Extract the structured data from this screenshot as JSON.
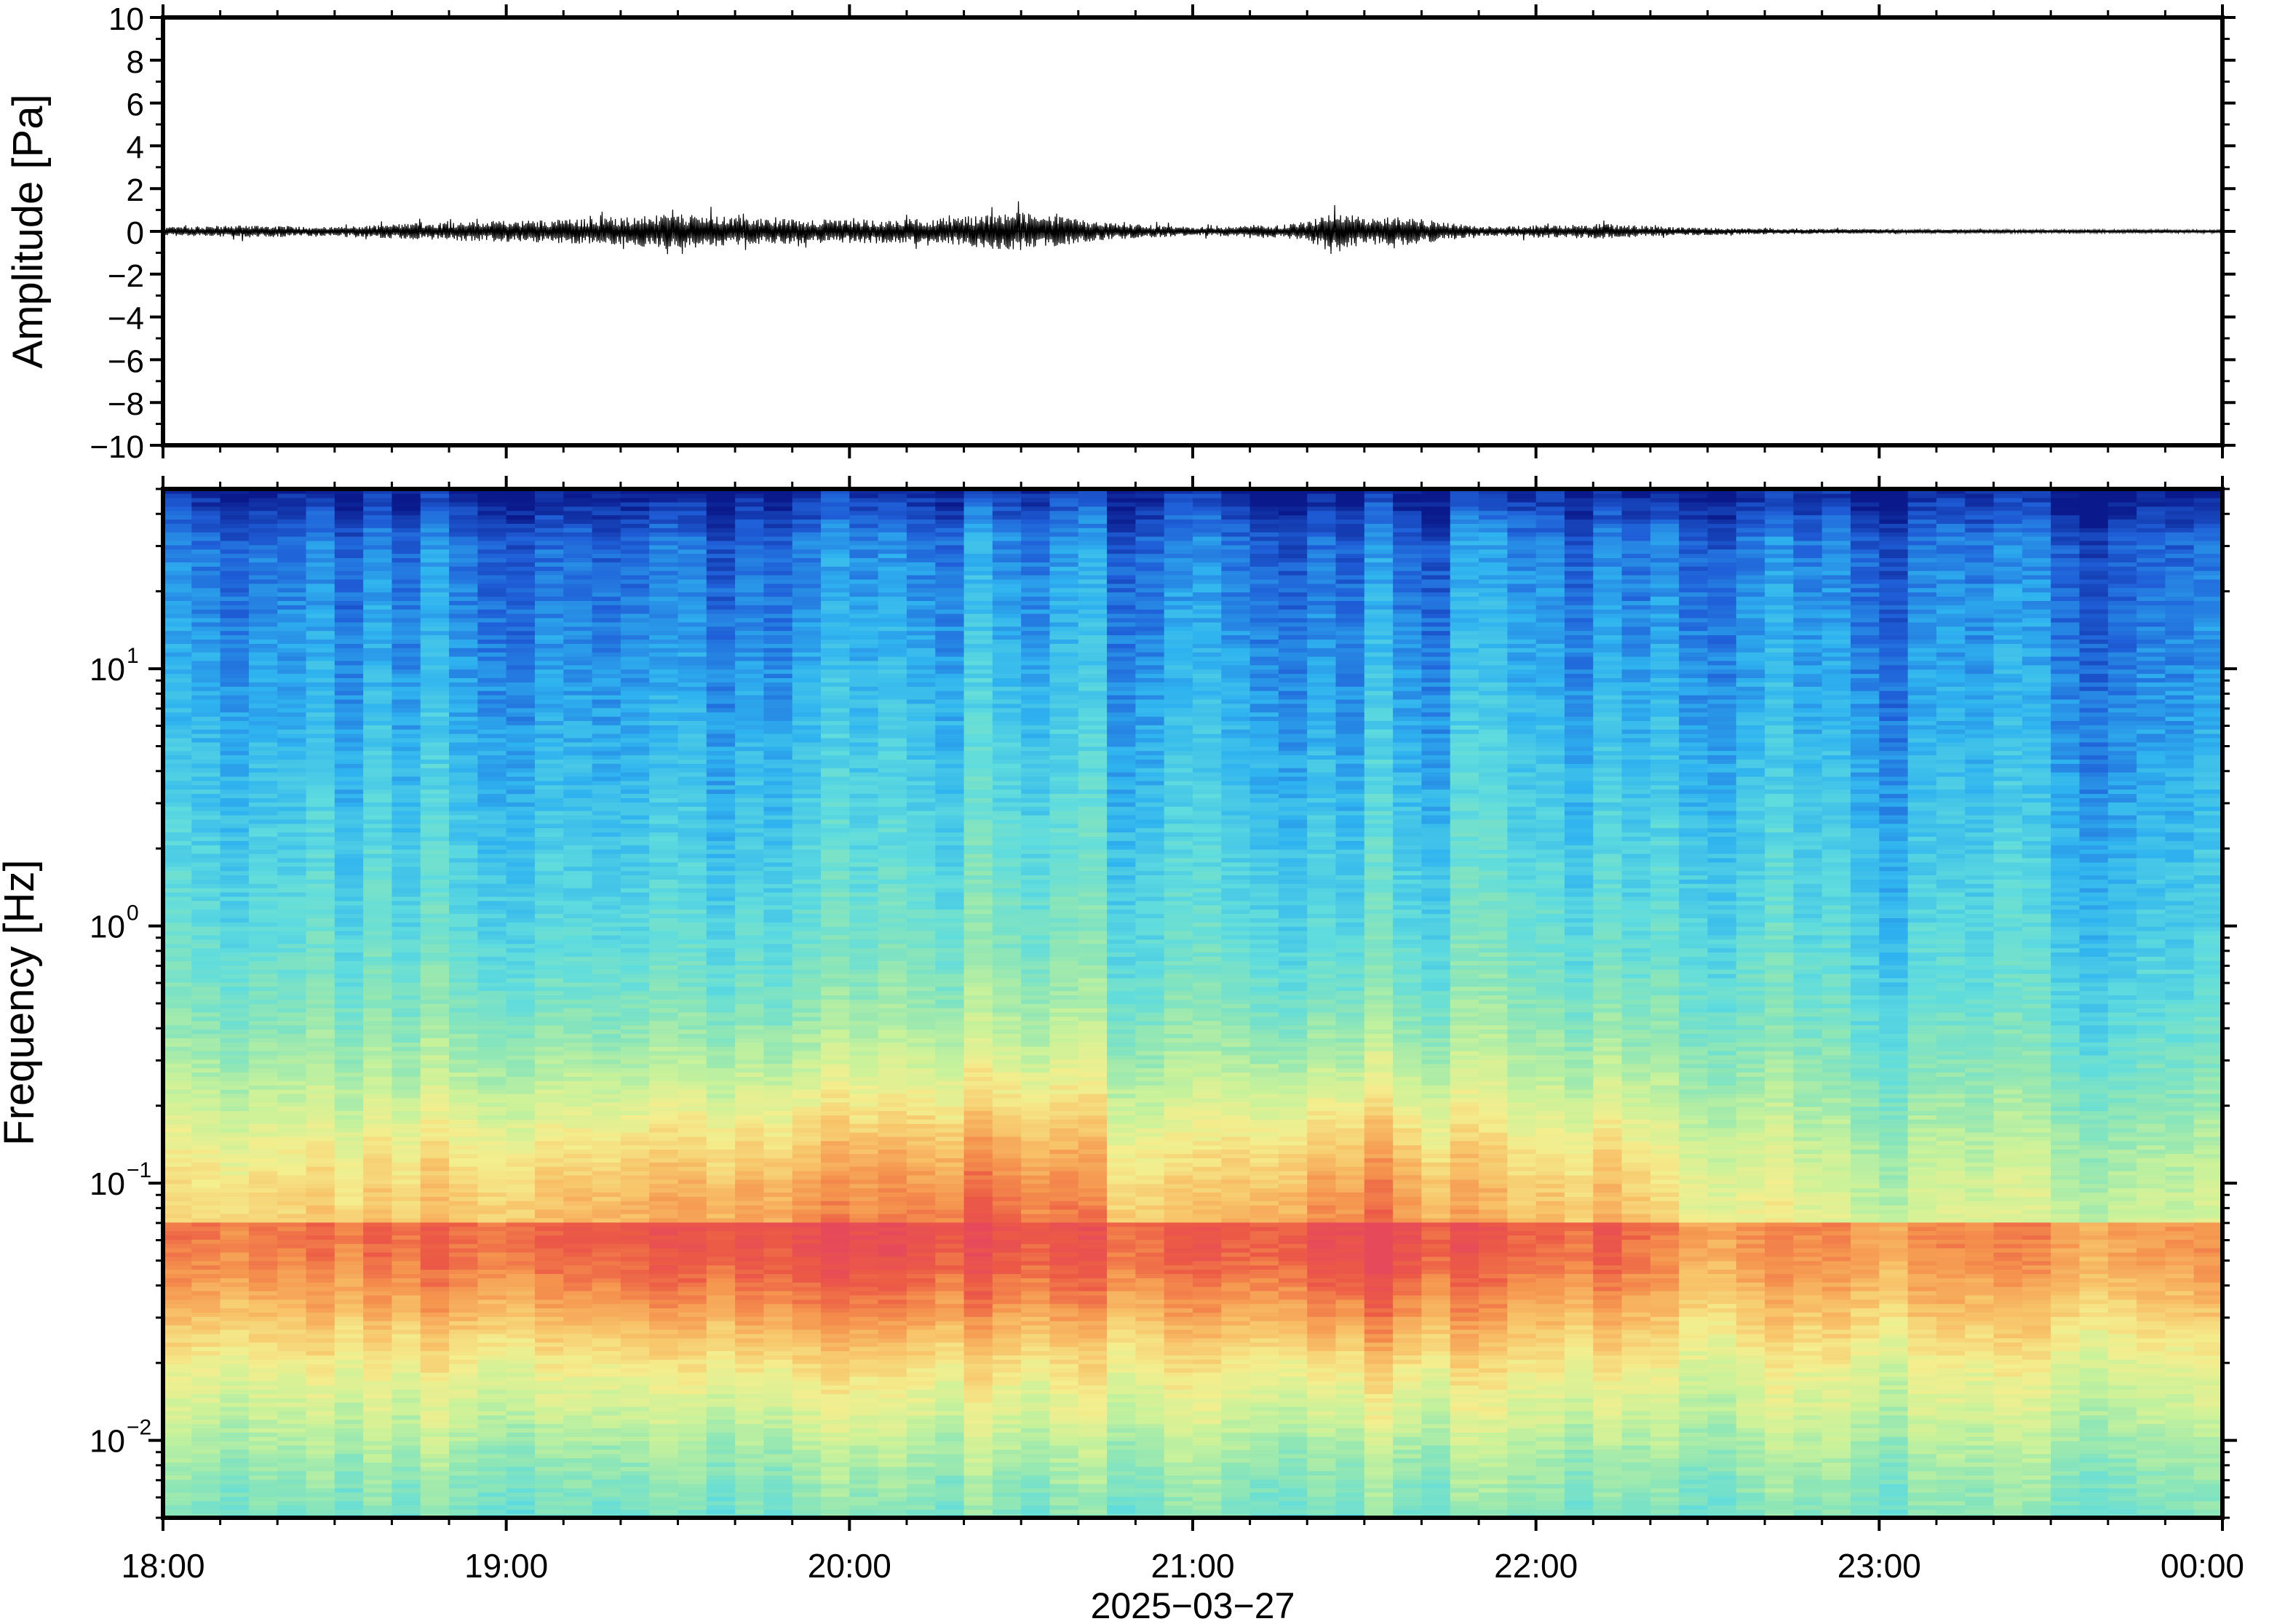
{
  "chart_data": [
    {
      "type": "line",
      "panel": "waveform",
      "title": "",
      "xlabel": "",
      "ylabel": "Amplitude [Pa]",
      "ylim": [
        -10,
        10
      ],
      "yticks": [
        "10",
        "8",
        "6",
        "4",
        "2",
        "0",
        "−2",
        "−4",
        "−6",
        "−8",
        "−10"
      ],
      "ytick_values": [
        10,
        8,
        6,
        4,
        2,
        0,
        -2,
        -4,
        -6,
        -8,
        -10
      ],
      "xlim_hours": [
        18,
        24
      ],
      "envelope": {
        "description_unit": "Pa",
        "time_hours": [
          18.0,
          18.25,
          18.5,
          18.75,
          19.0,
          19.25,
          19.5,
          19.75,
          20.0,
          20.25,
          20.4,
          20.5,
          20.6,
          20.75,
          21.0,
          21.25,
          21.35,
          21.4,
          21.5,
          21.6,
          21.7,
          21.85,
          22.0,
          22.2,
          22.4,
          22.6,
          22.8,
          23.0,
          23.5,
          24.0
        ],
        "amplitude": [
          0.2,
          0.3,
          0.2,
          0.4,
          0.5,
          0.6,
          0.8,
          0.6,
          0.55,
          0.6,
          0.8,
          0.9,
          0.7,
          0.4,
          0.2,
          0.3,
          0.5,
          1.1,
          0.6,
          0.7,
          0.5,
          0.2,
          0.3,
          0.35,
          0.2,
          0.15,
          0.12,
          0.1,
          0.08,
          0.08
        ]
      },
      "color": "#000000"
    },
    {
      "type": "heatmap",
      "panel": "spectrogram",
      "title": "",
      "xlabel": "2025−03−27",
      "ylabel": "Frequency [Hz]",
      "yscale": "log",
      "ylim_hz": [
        0.005,
        50
      ],
      "yticks": [
        {
          "value": 10,
          "base": "10",
          "exp": "1"
        },
        {
          "value": 1,
          "base": "10",
          "exp": "0"
        },
        {
          "value": 0.1,
          "base": "10",
          "exp": "−1"
        },
        {
          "value": 0.01,
          "base": "10",
          "exp": "−2"
        }
      ],
      "xticks": [
        {
          "hour": 18,
          "label": "18:00"
        },
        {
          "hour": 19,
          "label": "19:00"
        },
        {
          "hour": 20,
          "label": "20:00"
        },
        {
          "hour": 21,
          "label": "21:00"
        },
        {
          "hour": 22,
          "label": "22:00"
        },
        {
          "hour": 23,
          "label": "23:00"
        },
        {
          "hour": 24,
          "label": "00:00"
        }
      ],
      "colormap": "jet-like (dark blue low power, red high power)",
      "colormap_stops": [
        "#0a1a8c",
        "#1f5fd8",
        "#2fb3f0",
        "#5fdcde",
        "#8ee6b6",
        "#c9f29a",
        "#f4ee8e",
        "#f8c46a",
        "#f5944e",
        "#ec5a45",
        "#e64a5a"
      ],
      "time_bins": 72,
      "features": [
        {
          "time_range_hours": [
            19.0,
            21.0
          ],
          "freq_range_hz": [
            0.04,
            0.2
          ],
          "level": "high"
        },
        {
          "time_range_hours": [
            21.3,
            21.75
          ],
          "freq_range_hz": [
            0.02,
            0.15
          ],
          "level": "peak"
        },
        {
          "time_range_hours": [
            22.1,
            22.3
          ],
          "freq_range_hz": [
            0.05,
            0.1
          ],
          "level": "high"
        },
        {
          "time_range_hours": [
            20.3,
            20.75
          ],
          "freq_range_hz": [
            5,
            50
          ],
          "level": "elevated"
        },
        {
          "time_range_hours": [
            22.5,
            24.0
          ],
          "freq_range_hz": [
            5,
            50
          ],
          "level": "low"
        }
      ],
      "grid": false
    }
  ]
}
